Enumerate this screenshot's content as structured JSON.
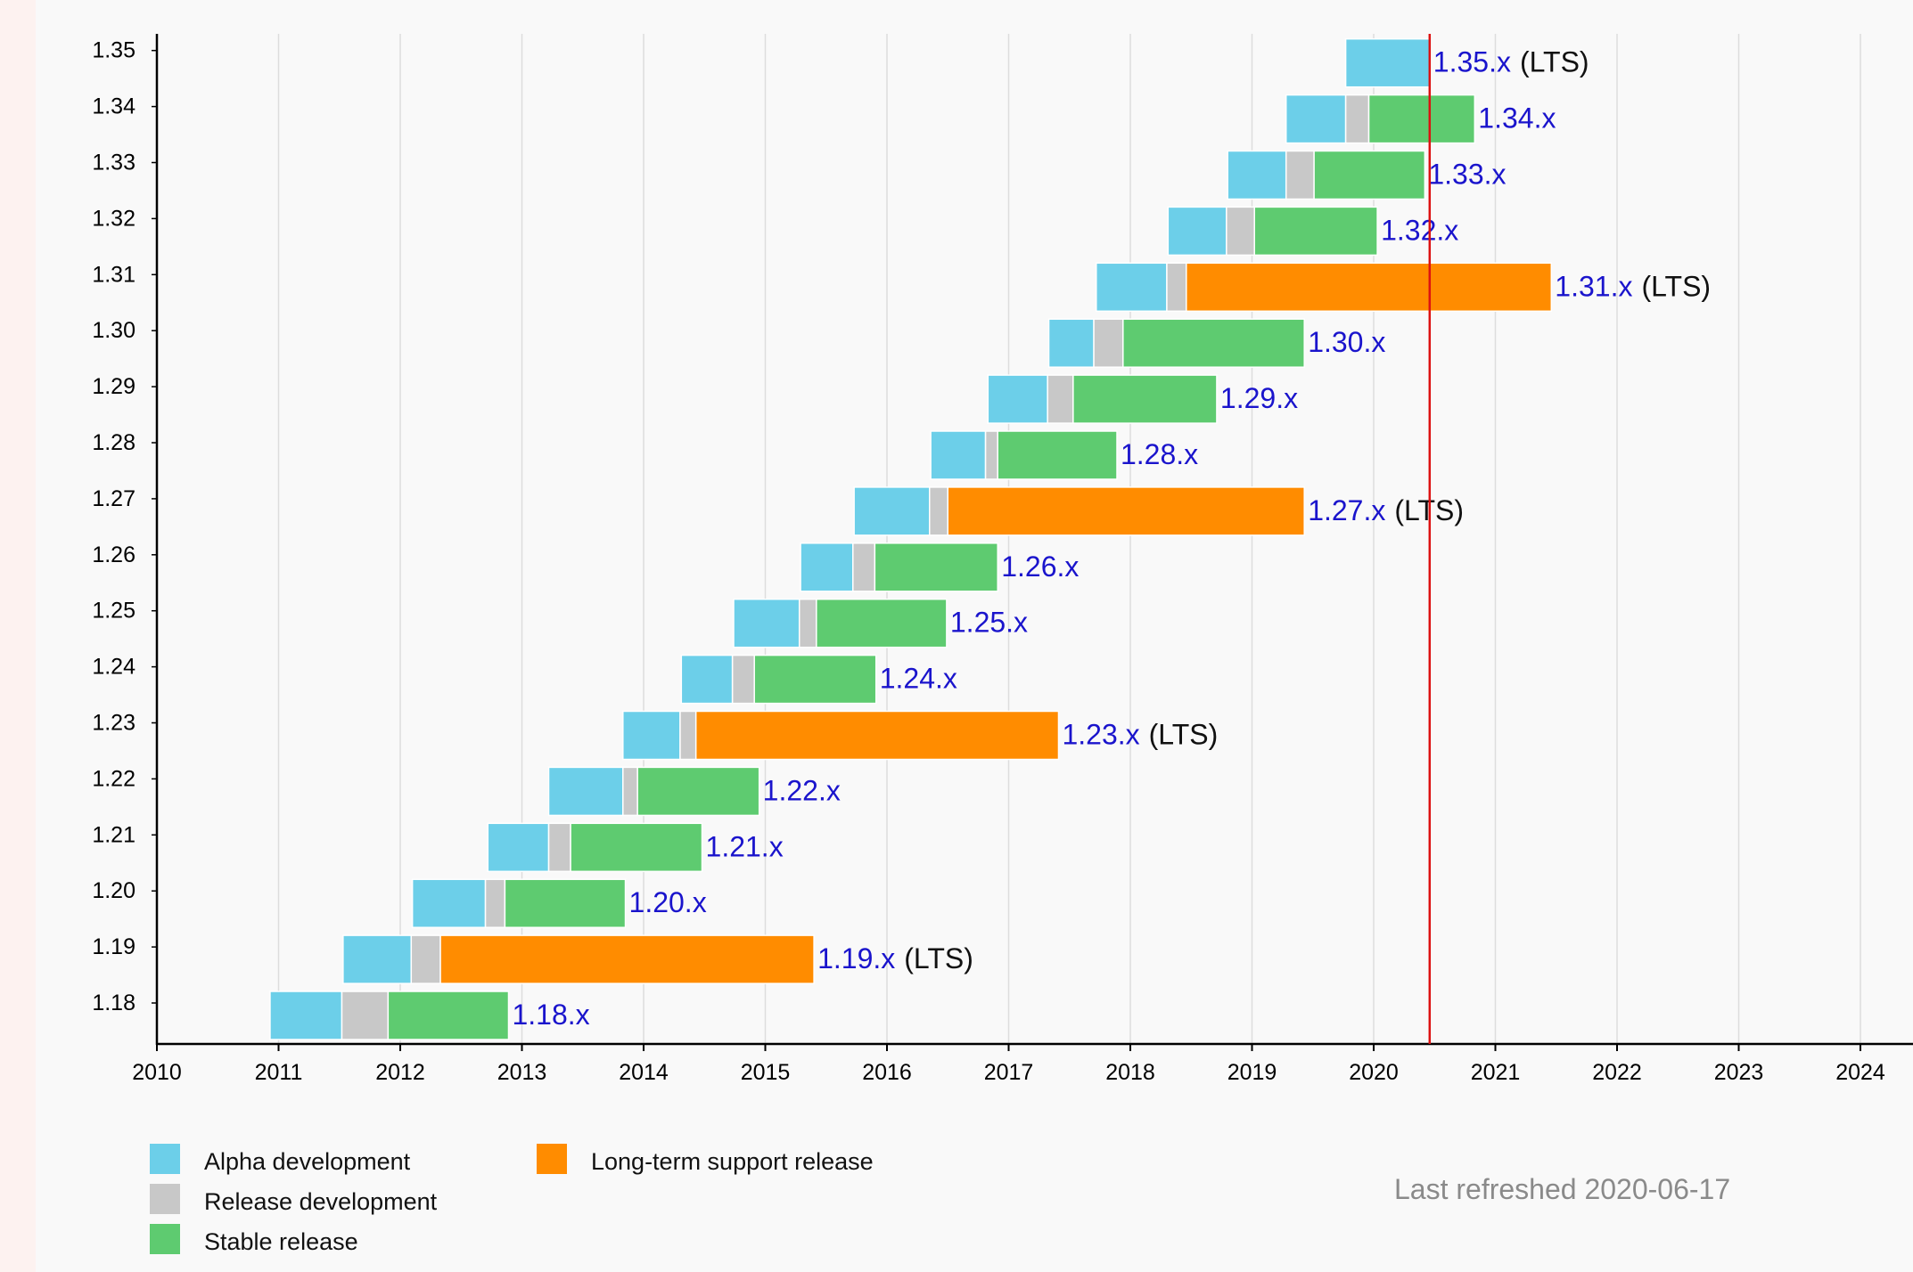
{
  "chart_data": {
    "type": "timeline",
    "x_axis": {
      "ticks": [
        "2010",
        "2011",
        "2012",
        "2013",
        "2014",
        "2015",
        "2016",
        "2017",
        "2018",
        "2019",
        "2020",
        "2021",
        "2022",
        "2023",
        "2024"
      ],
      "range": [
        2010,
        2024.45
      ]
    },
    "current_date_marker": 2020.46,
    "phase_colors": {
      "alpha": "#6ccfe9",
      "release": "#c8c8c8",
      "stable": "#5ecb70",
      "lts": "#ff8c00",
      "marker": "#dd1111",
      "label": "#1a14cc"
    },
    "releases": [
      {
        "version": "1.18",
        "label": "1.18.x",
        "lts": false,
        "alpha": [
          2010.93,
          2011.52
        ],
        "release": [
          2011.52,
          2011.9
        ],
        "support": [
          2011.9,
          2012.89
        ]
      },
      {
        "version": "1.19",
        "label": "1.19.x",
        "lts": true,
        "alpha": [
          2011.53,
          2012.09
        ],
        "release": [
          2012.09,
          2012.33
        ],
        "support": [
          2012.33,
          2015.4
        ]
      },
      {
        "version": "1.20",
        "label": "1.20.x",
        "lts": false,
        "alpha": [
          2012.1,
          2012.7
        ],
        "release": [
          2012.7,
          2012.86
        ],
        "support": [
          2012.86,
          2013.85
        ]
      },
      {
        "version": "1.21",
        "label": "1.21.x",
        "lts": false,
        "alpha": [
          2012.72,
          2013.22
        ],
        "release": [
          2013.22,
          2013.4
        ],
        "support": [
          2013.4,
          2014.48
        ]
      },
      {
        "version": "1.22",
        "label": "1.22.x",
        "lts": false,
        "alpha": [
          2013.22,
          2013.83
        ],
        "release": [
          2013.83,
          2013.95
        ],
        "support": [
          2013.95,
          2014.95
        ]
      },
      {
        "version": "1.23",
        "label": "1.23.x",
        "lts": true,
        "alpha": [
          2013.83,
          2014.3
        ],
        "release": [
          2014.3,
          2014.43
        ],
        "support": [
          2014.43,
          2017.41
        ]
      },
      {
        "version": "1.24",
        "label": "1.24.x",
        "lts": false,
        "alpha": [
          2014.31,
          2014.73
        ],
        "release": [
          2014.73,
          2014.91
        ],
        "support": [
          2014.91,
          2015.91
        ]
      },
      {
        "version": "1.25",
        "label": "1.25.x",
        "lts": false,
        "alpha": [
          2014.74,
          2015.28
        ],
        "release": [
          2015.28,
          2015.42
        ],
        "support": [
          2015.42,
          2016.49
        ]
      },
      {
        "version": "1.26",
        "label": "1.26.x",
        "lts": false,
        "alpha": [
          2015.29,
          2015.72
        ],
        "release": [
          2015.72,
          2015.9
        ],
        "support": [
          2015.9,
          2016.91
        ]
      },
      {
        "version": "1.27",
        "label": "1.27.x",
        "lts": true,
        "alpha": [
          2015.73,
          2016.35
        ],
        "release": [
          2016.35,
          2016.5
        ],
        "support": [
          2016.5,
          2019.43
        ]
      },
      {
        "version": "1.28",
        "label": "1.28.x",
        "lts": false,
        "alpha": [
          2016.36,
          2016.81
        ],
        "release": [
          2016.81,
          2016.91
        ],
        "support": [
          2016.91,
          2017.89
        ]
      },
      {
        "version": "1.29",
        "label": "1.29.x",
        "lts": false,
        "alpha": [
          2016.83,
          2017.32
        ],
        "release": [
          2017.32,
          2017.53
        ],
        "support": [
          2017.53,
          2018.71
        ]
      },
      {
        "version": "1.30",
        "label": "1.30.x",
        "lts": false,
        "alpha": [
          2017.33,
          2017.7
        ],
        "release": [
          2017.7,
          2017.94
        ],
        "support": [
          2017.94,
          2019.43
        ]
      },
      {
        "version": "1.31",
        "label": "1.31.x",
        "lts": true,
        "alpha": [
          2017.72,
          2018.3
        ],
        "release": [
          2018.3,
          2018.46
        ],
        "support": [
          2018.46,
          2021.46
        ]
      },
      {
        "version": "1.32",
        "label": "1.32.x",
        "lts": false,
        "alpha": [
          2018.31,
          2018.79
        ],
        "release": [
          2018.79,
          2019.02
        ],
        "support": [
          2019.02,
          2020.03
        ]
      },
      {
        "version": "1.33",
        "label": "1.33.x",
        "lts": false,
        "alpha": [
          2018.8,
          2019.28
        ],
        "release": [
          2019.28,
          2019.51
        ],
        "support": [
          2019.51,
          2020.42
        ]
      },
      {
        "version": "1.34",
        "label": "1.34.x",
        "lts": false,
        "alpha": [
          2019.28,
          2019.77
        ],
        "release": [
          2019.77,
          2019.96
        ],
        "support": [
          2019.96,
          2020.83
        ]
      },
      {
        "version": "1.35",
        "label": "1.35.x",
        "lts": true,
        "alpha": [
          2019.77,
          2020.46
        ],
        "release": null,
        "support": null
      }
    ],
    "lts_suffix": "(LTS)",
    "legend": [
      {
        "key": "alpha",
        "label": "Alpha development"
      },
      {
        "key": "release",
        "label": "Release development"
      },
      {
        "key": "stable",
        "label": "Stable release"
      },
      {
        "key": "lts",
        "label": "Long-term support release"
      }
    ],
    "footer": "Last refreshed 2020-06-17"
  }
}
